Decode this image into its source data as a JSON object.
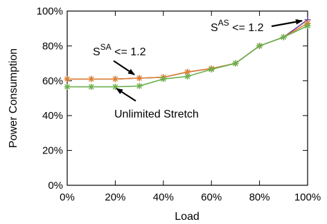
{
  "chart_data": {
    "type": "line",
    "xlabel": "Load",
    "ylabel": "Power Consumption",
    "x": [
      0,
      10,
      20,
      30,
      40,
      50,
      60,
      70,
      80,
      90,
      100
    ],
    "xlim": [
      0,
      100
    ],
    "ylim": [
      0,
      100
    ],
    "x_ticks": [
      0,
      20,
      40,
      60,
      80,
      100
    ],
    "y_ticks": [
      0,
      20,
      40,
      60,
      80,
      100
    ],
    "x_tick_labels": [
      "0%",
      "20%",
      "40%",
      "60%",
      "80%",
      "100%"
    ],
    "y_tick_labels": [
      "0%",
      "20%",
      "40%",
      "60%",
      "80%",
      "100%"
    ],
    "grid": false,
    "series": [
      {
        "key": "as",
        "color": "#6a3d9a",
        "marker": "plus",
        "values": [
          61,
          61,
          61,
          61.5,
          62,
          65,
          67,
          70,
          80,
          85,
          95
        ]
      },
      {
        "key": "sa",
        "color": "#e08030",
        "marker": "star",
        "values": [
          61,
          61,
          61,
          61.5,
          62,
          65,
          67,
          70,
          80,
          85,
          93
        ]
      },
      {
        "key": "unlimited",
        "color": "#6ab04c",
        "marker": "star",
        "values": [
          56.5,
          56.5,
          56.5,
          57,
          61,
          62.5,
          66.5,
          70,
          80,
          85,
          91.5
        ]
      }
    ],
    "annotations": [
      {
        "key": "as",
        "base": "S",
        "sup": "AS",
        "rest": " <= 1.2",
        "point_x": 100,
        "point_y": 95
      },
      {
        "key": "sa",
        "base": "S",
        "sup": "SA",
        "rest": " <= 1.2",
        "point_x": 30,
        "point_y": 61.5
      },
      {
        "key": "unlimited",
        "text": "Unlimited Stretch",
        "point_x": 20,
        "point_y": 56.5
      }
    ]
  }
}
